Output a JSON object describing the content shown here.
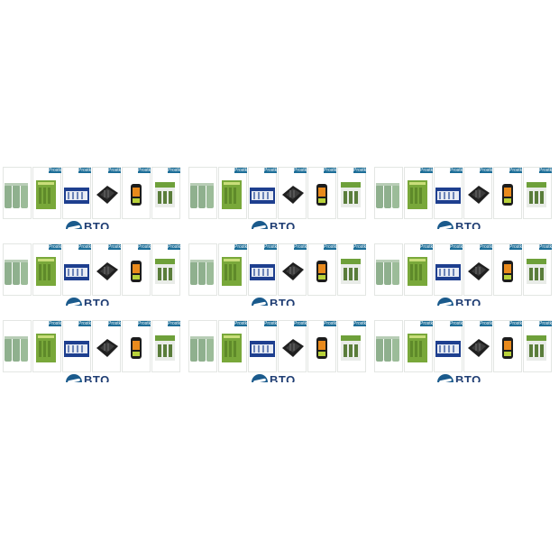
{
  "brand": {
    "logo_text": "BTO",
    "badge_text": "Prostka"
  },
  "grid": {
    "rows": 3,
    "cols": 3
  },
  "products": [
    {
      "icon": "green-nimh-batteries-icon"
    },
    {
      "icon": "green-battery-pack-icon"
    },
    {
      "icon": "blue-battery-blister-icon"
    },
    {
      "icon": "black-charger-icon"
    },
    {
      "icon": "orange-handheld-charger-icon"
    },
    {
      "icon": "green-charger-box-icon"
    }
  ],
  "colors": {
    "accent": "#1d6e98",
    "logo": "#1f3d73",
    "green": "#8fb08e"
  }
}
